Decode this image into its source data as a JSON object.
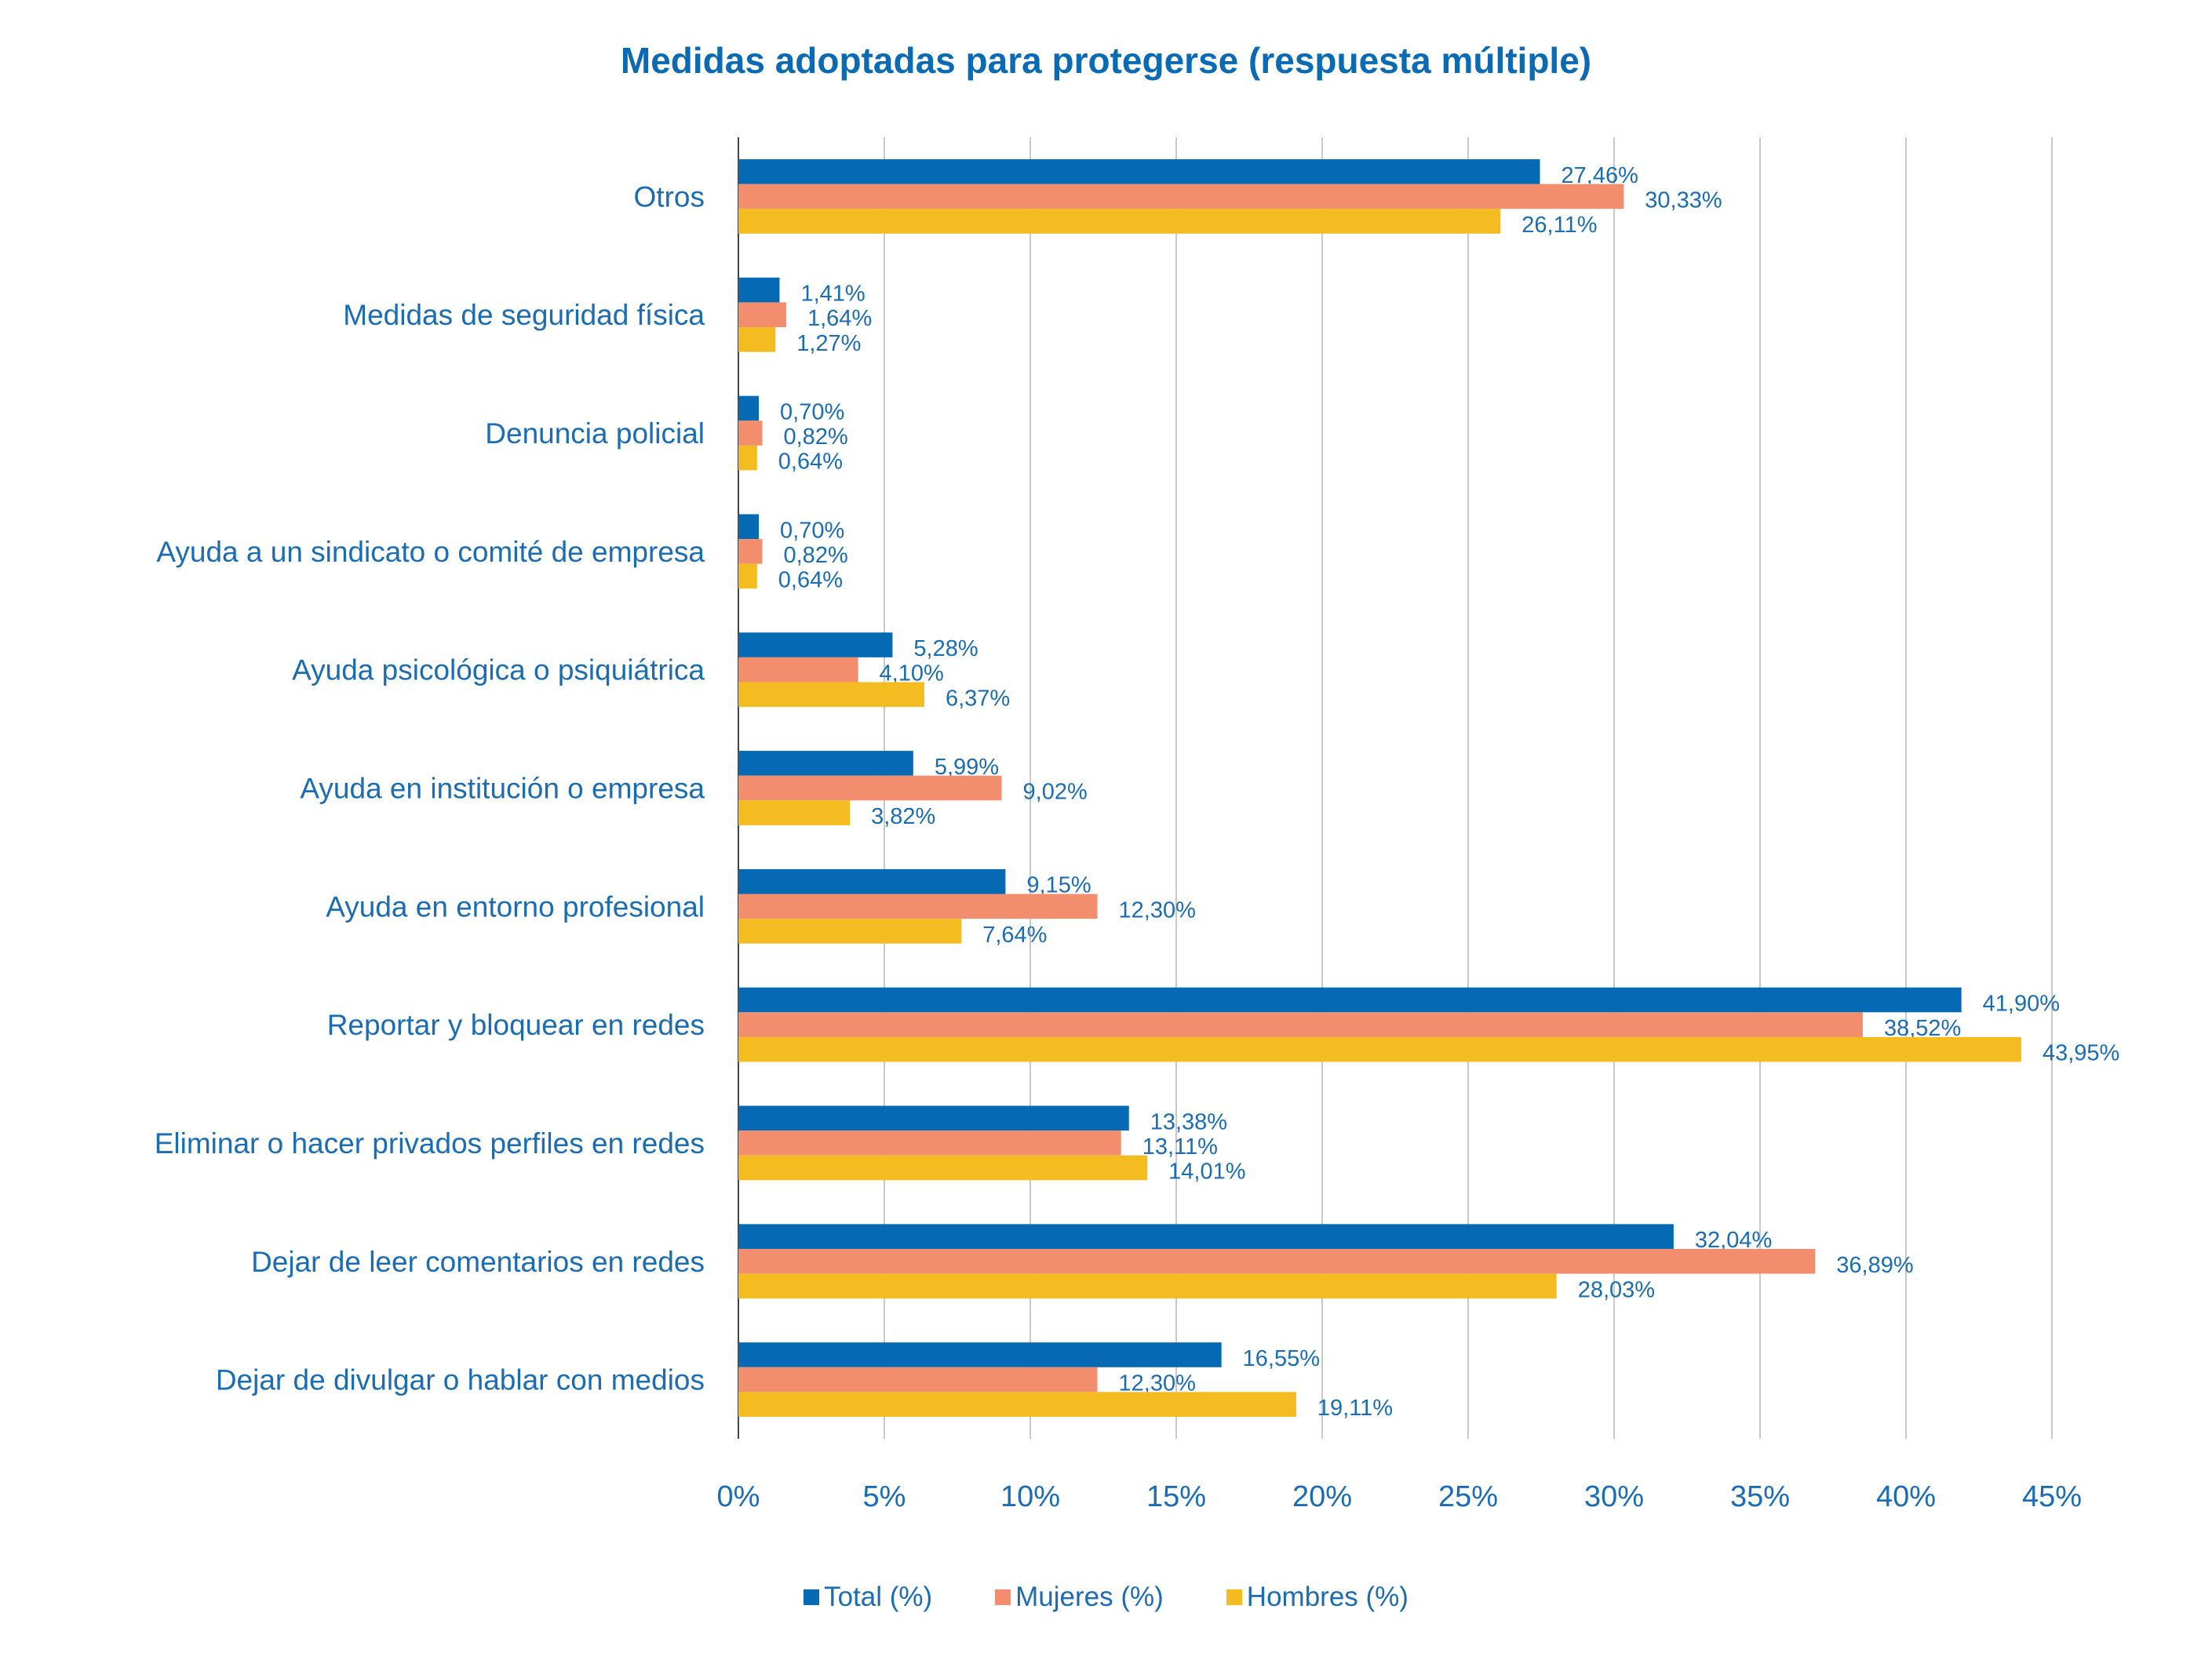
{
  "chart_data": {
    "type": "bar",
    "orientation": "horizontal",
    "title": "Medidas adoptadas para protegerse (respuesta múltiple)",
    "categories": [
      "Otros",
      "Medidas de seguridad física",
      "Denuncia policial",
      "Ayuda a un sindicato o comité de empresa",
      "Ayuda psicológica o psiquiátrica",
      "Ayuda en institución o empresa",
      "Ayuda en entorno profesional",
      "Reportar y bloquear en redes",
      "Eliminar o hacer privados perfiles en redes",
      "Dejar de leer comentarios en redes",
      "Dejar de divulgar o hablar con medios"
    ],
    "series": [
      {
        "name": "Total (%)",
        "color": "#0569b3",
        "values": [
          27.46,
          1.41,
          0.7,
          0.7,
          5.28,
          5.99,
          9.15,
          41.9,
          13.38,
          32.04,
          16.55
        ],
        "labels": [
          "27,46%",
          "1,41%",
          "0,70%",
          "0,70%",
          "5,28%",
          "5,99%",
          "9,15%",
          "41,90%",
          "13,38%",
          "32,04%",
          "16,55%"
        ]
      },
      {
        "name": "Mujeres (%)",
        "color": "#f28e6e",
        "values": [
          30.33,
          1.64,
          0.82,
          0.82,
          4.1,
          9.02,
          12.3,
          38.52,
          13.11,
          36.89,
          12.3
        ],
        "labels": [
          "30,33%",
          "1,64%",
          "0,82%",
          "0,82%",
          "4,10%",
          "9,02%",
          "12,30%",
          "38,52%",
          "13,11%",
          "36,89%",
          "12,30%"
        ]
      },
      {
        "name": "Hombres (%)",
        "color": "#f4bc20",
        "values": [
          26.11,
          1.27,
          0.64,
          0.64,
          6.37,
          3.82,
          7.64,
          43.95,
          14.01,
          28.03,
          19.11
        ],
        "labels": [
          "26,11%",
          "1,27%",
          "0,64%",
          "0,64%",
          "6,37%",
          "3,82%",
          "7,64%",
          "43,95%",
          "14,01%",
          "28,03%",
          "19,11%"
        ]
      }
    ],
    "xlim": [
      0,
      45
    ],
    "xticks": [
      "0%",
      "5%",
      "10%",
      "15%",
      "20%",
      "25%",
      "30%",
      "35%",
      "40%",
      "45%"
    ],
    "grid": true,
    "legend_position": "bottom"
  }
}
